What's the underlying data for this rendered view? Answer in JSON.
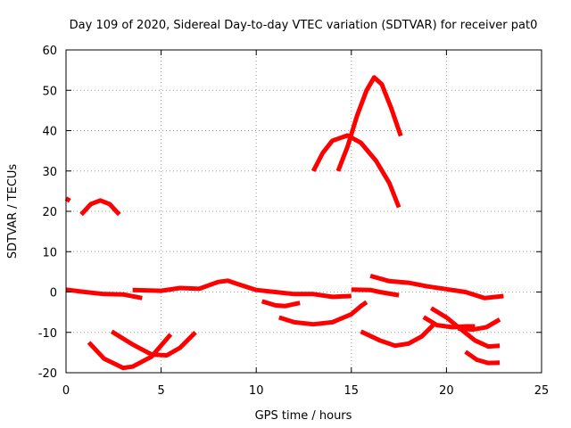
{
  "chart_data": {
    "type": "line",
    "title": "Day 109 of 2020, Sidereal Day-to-day VTEC variation (SDTVAR) for receiver pat0",
    "xlabel": "GPS time / hours",
    "ylabel": "SDTVAR / TECUs",
    "xlim": [
      0,
      25
    ],
    "ylim": [
      -20,
      60
    ],
    "xticks": [
      0,
      5,
      10,
      15,
      20,
      25
    ],
    "yticks": [
      -20,
      -10,
      0,
      10,
      20,
      30,
      40,
      50,
      60
    ],
    "grid": true,
    "color": "#ff0000",
    "series": [
      {
        "name": "trace-1",
        "points": [
          [
            0,
            23.2
          ],
          [
            0.2,
            22.6
          ]
        ]
      },
      {
        "name": "trace-2",
        "points": [
          [
            0.8,
            19.2
          ],
          [
            1.3,
            21.8
          ],
          [
            1.8,
            22.7
          ],
          [
            2.3,
            21.8
          ],
          [
            2.8,
            19.2
          ]
        ]
      },
      {
        "name": "trace-3",
        "points": [
          [
            0,
            0.6
          ],
          [
            1,
            0
          ],
          [
            2,
            -0.5
          ],
          [
            3,
            -0.6
          ],
          [
            4,
            -1.5
          ]
        ]
      },
      {
        "name": "trace-4",
        "points": [
          [
            3.5,
            0.5
          ],
          [
            5,
            0.3
          ],
          [
            6,
            1
          ],
          [
            7,
            0.8
          ],
          [
            8,
            2.5
          ],
          [
            8.5,
            2.8
          ],
          [
            9,
            2
          ],
          [
            10,
            0.5
          ],
          [
            11,
            0
          ],
          [
            12,
            -0.5
          ],
          [
            13,
            -0.5
          ],
          [
            14,
            -1.2
          ],
          [
            15,
            -1
          ]
        ]
      },
      {
        "name": "trace-5",
        "points": [
          [
            15,
            0.6
          ],
          [
            16,
            0.5
          ],
          [
            16.5,
            0
          ],
          [
            17.5,
            -0.8
          ]
        ]
      },
      {
        "name": "trace-6",
        "points": [
          [
            16,
            4
          ],
          [
            17,
            2.7
          ],
          [
            18,
            2.3
          ],
          [
            19,
            1.4
          ],
          [
            20,
            0.7
          ],
          [
            21,
            0
          ],
          [
            22,
            -1.5
          ],
          [
            23,
            -1
          ]
        ]
      },
      {
        "name": "trace-7",
        "points": [
          [
            10.3,
            -2.3
          ],
          [
            11,
            -3.3
          ],
          [
            11.5,
            -3.5
          ],
          [
            12.3,
            -2.7
          ]
        ]
      },
      {
        "name": "trace-8",
        "points": [
          [
            11.2,
            -6.3
          ],
          [
            12,
            -7.5
          ],
          [
            13,
            -8
          ],
          [
            14,
            -7.5
          ],
          [
            15,
            -5.5
          ],
          [
            15.5,
            -3.5
          ],
          [
            15.8,
            -2.5
          ]
        ]
      },
      {
        "name": "trace-9",
        "points": [
          [
            1.2,
            -12.5
          ],
          [
            2,
            -16.5
          ],
          [
            3,
            -18.8
          ],
          [
            3.5,
            -18.5
          ],
          [
            4.5,
            -16
          ],
          [
            5.5,
            -10.5
          ]
        ]
      },
      {
        "name": "trace-10",
        "points": [
          [
            2.4,
            -9.8
          ],
          [
            3.5,
            -13
          ],
          [
            4.5,
            -15.5
          ],
          [
            5.3,
            -15.7
          ],
          [
            6,
            -13.8
          ],
          [
            6.8,
            -10
          ]
        ]
      },
      {
        "name": "trace-11",
        "points": [
          [
            15.5,
            -9.8
          ],
          [
            16.5,
            -12
          ],
          [
            17.3,
            -13.3
          ],
          [
            18,
            -12.8
          ],
          [
            18.7,
            -11
          ],
          [
            19.3,
            -8.2
          ]
        ]
      },
      {
        "name": "trace-12",
        "points": [
          [
            18.8,
            -6.2
          ],
          [
            19.5,
            -8.2
          ],
          [
            20.3,
            -8.7
          ],
          [
            21,
            -8.5
          ],
          [
            21.5,
            -8.5
          ]
        ]
      },
      {
        "name": "trace-13",
        "points": [
          [
            19.2,
            -4
          ],
          [
            20,
            -6.3
          ],
          [
            20.7,
            -9
          ],
          [
            21.5,
            -12
          ],
          [
            22.2,
            -13.5
          ],
          [
            22.8,
            -13.3
          ]
        ]
      },
      {
        "name": "trace-14",
        "points": [
          [
            20.6,
            -9
          ],
          [
            21.4,
            -9.3
          ],
          [
            22.1,
            -8.7
          ],
          [
            22.8,
            -6.8
          ]
        ]
      },
      {
        "name": "trace-15",
        "points": [
          [
            21,
            -14.8
          ],
          [
            21.6,
            -16.8
          ],
          [
            22.2,
            -17.6
          ],
          [
            22.8,
            -17.5
          ]
        ]
      },
      {
        "name": "trace-16",
        "points": [
          [
            13,
            30
          ],
          [
            13.5,
            34.5
          ],
          [
            14,
            37.5
          ],
          [
            14.8,
            38.8
          ],
          [
            15.5,
            37
          ],
          [
            16.3,
            32.5
          ],
          [
            17,
            27
          ],
          [
            17.5,
            21
          ]
        ]
      },
      {
        "name": "trace-17",
        "points": [
          [
            14.3,
            30
          ],
          [
            14.8,
            36
          ],
          [
            15.3,
            43.7
          ],
          [
            15.8,
            50
          ],
          [
            16.2,
            53.2
          ],
          [
            16.6,
            51.5
          ],
          [
            17.1,
            45.5
          ],
          [
            17.6,
            38.7
          ]
        ]
      }
    ]
  }
}
